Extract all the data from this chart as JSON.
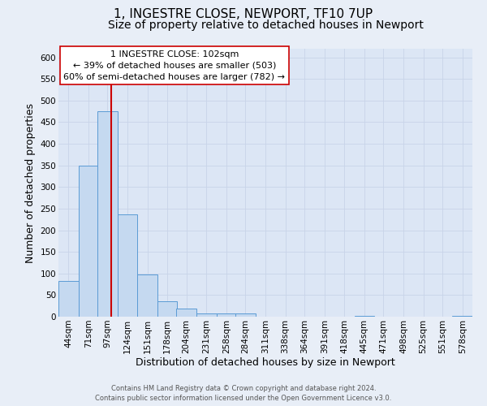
{
  "title1": "1, INGESTRE CLOSE, NEWPORT, TF10 7UP",
  "title2": "Size of property relative to detached houses in Newport",
  "xlabel": "Distribution of detached houses by size in Newport",
  "ylabel": "Number of detached properties",
  "bar_values": [
    83,
    349,
    476,
    236,
    97,
    36,
    18,
    8,
    7,
    7,
    0,
    0,
    0,
    0,
    0,
    2,
    0,
    0,
    0,
    0,
    2
  ],
  "bin_labels": [
    "44sqm",
    "71sqm",
    "97sqm",
    "124sqm",
    "151sqm",
    "178sqm",
    "204sqm",
    "231sqm",
    "258sqm",
    "284sqm",
    "311sqm",
    "338sqm",
    "364sqm",
    "391sqm",
    "418sqm",
    "445sqm",
    "471sqm",
    "498sqm",
    "525sqm",
    "551sqm",
    "578sqm"
  ],
  "bar_color": "#c5d9f0",
  "bar_edge_color": "#5b9bd5",
  "vline_color": "#cc0000",
  "vline_x_label": "97sqm",
  "ylim_max": 620,
  "yticks": [
    0,
    50,
    100,
    150,
    200,
    250,
    300,
    350,
    400,
    450,
    500,
    550,
    600
  ],
  "annotation_title": "1 INGESTRE CLOSE: 102sqm",
  "annotation_line1": "← 39% of detached houses are smaller (503)",
  "annotation_line2": "60% of semi-detached houses are larger (782) →",
  "annotation_box_facecolor": "#ffffff",
  "annotation_box_edgecolor": "#cc0000",
  "footer1": "Contains HM Land Registry data © Crown copyright and database right 2024.",
  "footer2": "Contains public sector information licensed under the Open Government Licence v3.0.",
  "bg_color": "#e8eef7",
  "plot_bg_color": "#dce6f5",
  "grid_color": "#c8d4e8",
  "title1_fontsize": 11,
  "title2_fontsize": 10,
  "xlabel_fontsize": 9,
  "ylabel_fontsize": 9,
  "tick_fontsize": 7.5,
  "annot_fontsize": 8,
  "footer_fontsize": 6
}
